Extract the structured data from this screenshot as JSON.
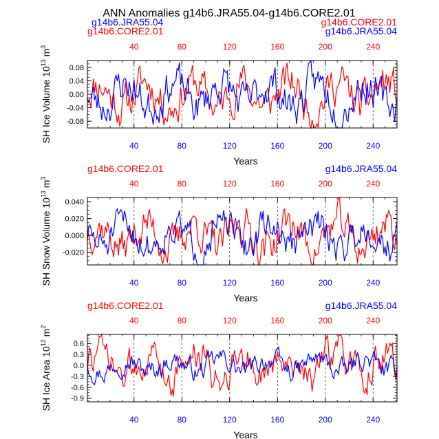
{
  "colors": {
    "red": "#ff0000",
    "blue": "#0000ff",
    "axis": "#000000",
    "gridline": "#444444"
  },
  "chart_data": {
    "title": "ANN Anomalies g14b6.JRA55.04-g14b6.CORE2.01",
    "top_legend": {
      "left": [
        "g14b6.JRA55.04",
        "g14b6.CORE2.01"
      ],
      "right": [
        "g14b6.CORE2.01",
        "g14b6.JRA55.04"
      ]
    },
    "panels": [
      {
        "type": "line",
        "ylabel": "SH Ice Volume 10^13 m^3",
        "ylabel_main": "SH Ice Volume 10",
        "ylabel_exp": "13",
        "ylabel_unit": "m",
        "ylabel_unit_exp": "3",
        "xlabel": "Years",
        "ylim": [
          -0.1,
          0.1
        ],
        "yticks": [
          -0.08,
          -0.04,
          0.0,
          0.04,
          0.08
        ],
        "ytick_labels": [
          "-0.08",
          "-0.04",
          "0.00",
          "0.04",
          "0.08"
        ],
        "xlim": [
          1,
          260
        ],
        "xticks": [
          40,
          80,
          120,
          160,
          200,
          240
        ],
        "xtick_labels": [
          "40",
          "80",
          "120",
          "160",
          "200",
          "240"
        ],
        "legend_left": "",
        "legend_right": "",
        "series": [
          {
            "name": "g14b6.CORE2.01",
            "color": "red",
            "amplitude": 0.1,
            "seed": 11
          },
          {
            "name": "g14b6.JRA55.04",
            "color": "blue",
            "amplitude": 0.1,
            "seed": 23
          }
        ]
      },
      {
        "type": "line",
        "ylabel": "SH Snow Volume 10^13 m^3",
        "ylabel_main": "SH Snow Volume 10",
        "ylabel_exp": "13",
        "ylabel_unit": "m",
        "ylabel_unit_exp": "3",
        "xlabel": "Years",
        "ylim": [
          -0.035,
          0.045
        ],
        "yticks": [
          -0.02,
          0.0,
          0.02,
          0.04
        ],
        "ytick_labels": [
          "-0.020",
          "0.000",
          "0.020",
          "0.040"
        ],
        "xlim": [
          1,
          260
        ],
        "xticks": [
          40,
          80,
          120,
          160,
          200,
          240
        ],
        "xtick_labels": [
          "40",
          "80",
          "120",
          "160",
          "200",
          "240"
        ],
        "legend_left": "g14b6.CORE2.01",
        "legend_right": "g14b6.JRA55.04",
        "series": [
          {
            "name": "g14b6.CORE2.01",
            "color": "red",
            "amplitude": 0.04,
            "seed": 37
          },
          {
            "name": "g14b6.JRA55.04",
            "color": "blue",
            "amplitude": 0.035,
            "seed": 51
          }
        ]
      },
      {
        "type": "line",
        "ylabel": "SH Ice Area 10^12 m^2",
        "ylabel_main": "SH Ice Area 10",
        "ylabel_exp": "12",
        "ylabel_unit": "m",
        "ylabel_unit_exp": "2",
        "xlabel": "Years",
        "ylim": [
          -1.0,
          0.85
        ],
        "yticks": [
          -0.9,
          -0.6,
          -0.3,
          0.0,
          0.3,
          0.6
        ],
        "ytick_labels": [
          "-0.9",
          "-0.6",
          "-0.3",
          "0.0",
          "0.3",
          "0.6"
        ],
        "xlim": [
          1,
          260
        ],
        "xticks": [
          40,
          80,
          120,
          160,
          200,
          240
        ],
        "xtick_labels": [
          "40",
          "80",
          "120",
          "160",
          "200",
          "240"
        ],
        "legend_left": "g14b6.CORE2.01",
        "legend_right": "g14b6.JRA55.04",
        "series": [
          {
            "name": "g14b6.CORE2.01",
            "color": "red",
            "amplitude": 0.85,
            "seed": 73
          },
          {
            "name": "g14b6.JRA55.04",
            "color": "blue",
            "amplitude": 0.5,
            "seed": 97
          }
        ]
      }
    ]
  }
}
